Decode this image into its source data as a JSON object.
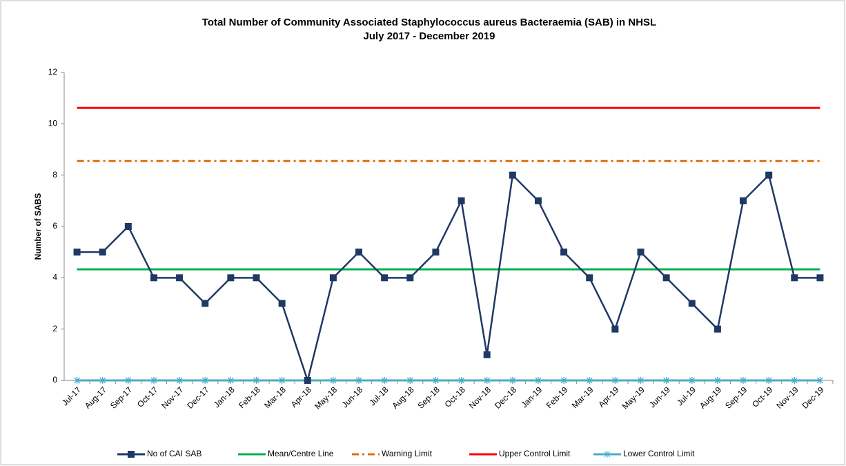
{
  "chart_data": {
    "type": "line",
    "title": "Total Number of Community Associated Staphylococcus aureus Bacteraemia (SAB) in NHSL",
    "subtitle": "July 2017 - December 2019",
    "y_label": "Number of SABS",
    "categories": [
      "Jul-17",
      "Aug-17",
      "Sep-17",
      "Oct-17",
      "Nov-17",
      "Dec-17",
      "Jan-18",
      "Feb-18",
      "Mar-18",
      "Apr-18",
      "May-18",
      "Jun-18",
      "Jul-18",
      "Aug-18",
      "Sep-18",
      "Oct-18",
      "Nov-18",
      "Dec-18",
      "Jan-19",
      "Feb-19",
      "Mar-19",
      "Apr-19",
      "May-19",
      "Jun-19",
      "Jul-19",
      "Aug-19",
      "Sep-19",
      "Oct-19",
      "Nov-19",
      "Dec-19"
    ],
    "series": [
      {
        "name": "No of CAI SAB",
        "color": "#1f3864",
        "marker": "square",
        "dash": "solid",
        "values": [
          5,
          5,
          6,
          4,
          4,
          3,
          4,
          4,
          3,
          0,
          4,
          5,
          4,
          4,
          5,
          7,
          1,
          8,
          7,
          5,
          4,
          2,
          5,
          4,
          3,
          2,
          7,
          8,
          4,
          4
        ]
      },
      {
        "name": "Mean/Centre Line",
        "color": "#00b050",
        "marker": "none",
        "dash": "solid",
        "values": [
          4.33,
          4.33,
          4.33,
          4.33,
          4.33,
          4.33,
          4.33,
          4.33,
          4.33,
          4.33,
          4.33,
          4.33,
          4.33,
          4.33,
          4.33,
          4.33,
          4.33,
          4.33,
          4.33,
          4.33,
          4.33,
          4.33,
          4.33,
          4.33,
          4.33,
          4.33,
          4.33,
          4.33,
          4.33,
          4.33
        ]
      },
      {
        "name": "Warning Limit",
        "color": "#e46c0a",
        "marker": "none",
        "dash": "dash-dot",
        "values": [
          8.55,
          8.55,
          8.55,
          8.55,
          8.55,
          8.55,
          8.55,
          8.55,
          8.55,
          8.55,
          8.55,
          8.55,
          8.55,
          8.55,
          8.55,
          8.55,
          8.55,
          8.55,
          8.55,
          8.55,
          8.55,
          8.55,
          8.55,
          8.55,
          8.55,
          8.55,
          8.55,
          8.55,
          8.55,
          8.55
        ]
      },
      {
        "name": "Upper Control Limit",
        "color": "#ff0000",
        "marker": "none",
        "dash": "solid",
        "values": [
          10.62,
          10.62,
          10.62,
          10.62,
          10.62,
          10.62,
          10.62,
          10.62,
          10.62,
          10.62,
          10.62,
          10.62,
          10.62,
          10.62,
          10.62,
          10.62,
          10.62,
          10.62,
          10.62,
          10.62,
          10.62,
          10.62,
          10.62,
          10.62,
          10.62,
          10.62,
          10.62,
          10.62,
          10.62,
          10.62
        ]
      },
      {
        "name": "Lower Control Limit",
        "color": "#4bacc6",
        "marker": "asterisk",
        "dash": "solid",
        "values": [
          0,
          0,
          0,
          0,
          0,
          0,
          0,
          0,
          0,
          0,
          0,
          0,
          0,
          0,
          0,
          0,
          0,
          0,
          0,
          0,
          0,
          0,
          0,
          0,
          0,
          0,
          0,
          0,
          0,
          0
        ]
      }
    ],
    "ylim": [
      0,
      12
    ],
    "yticks": [
      0,
      2,
      4,
      6,
      8,
      10,
      12
    ],
    "grid": false,
    "legend": "bottom"
  }
}
